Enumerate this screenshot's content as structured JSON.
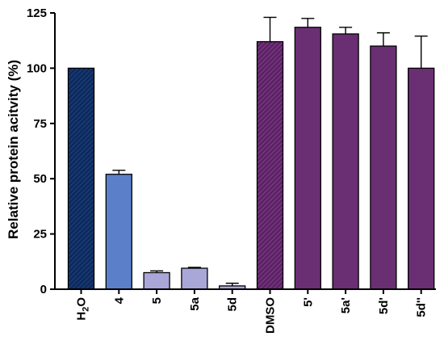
{
  "chart_data": {
    "type": "bar",
    "ylabel": "Relative protein acitvity (%)",
    "ylim": [
      0,
      125
    ],
    "yticks": [
      "0",
      "25",
      "50",
      "75",
      "100",
      "125"
    ],
    "grid": false,
    "categories": [
      {
        "label": "H",
        "sub": "2",
        "tail": "O",
        "value": 100,
        "error": 0,
        "color": "#0d2a5e",
        "hatch": true
      },
      {
        "label": "4",
        "sub": "",
        "tail": "",
        "value": 52,
        "error": 1.8,
        "color": "#5b80c9",
        "hatch": false
      },
      {
        "label": "5",
        "sub": "",
        "tail": "",
        "value": 7.5,
        "error": 0.8,
        "color": "#a9a6d8",
        "hatch": false
      },
      {
        "label": "5a",
        "sub": "",
        "tail": "",
        "value": 9.5,
        "error": 0.4,
        "color": "#a9a6d8",
        "hatch": false
      },
      {
        "label": "5d",
        "sub": "",
        "tail": "",
        "value": 1.5,
        "error": 1.2,
        "color": "#a9a6d8",
        "hatch": false
      },
      {
        "label": "DMSO",
        "sub": "",
        "tail": "",
        "value": 112,
        "error": 11,
        "color": "#6a2f73",
        "hatch": true
      },
      {
        "label": "5'",
        "sub": "",
        "tail": "",
        "value": 118.5,
        "error": 4,
        "color": "#6a2f73",
        "hatch": false
      },
      {
        "label": "5a'",
        "sub": "",
        "tail": "",
        "value": 115.5,
        "error": 3,
        "color": "#6a2f73",
        "hatch": false
      },
      {
        "label": "5d'",
        "sub": "",
        "tail": "",
        "value": 110,
        "error": 6,
        "color": "#6a2f73",
        "hatch": false
      },
      {
        "label": "5d''",
        "sub": "",
        "tail": "",
        "value": 100,
        "error": 14.5,
        "color": "#6a2f73",
        "hatch": false
      }
    ]
  }
}
